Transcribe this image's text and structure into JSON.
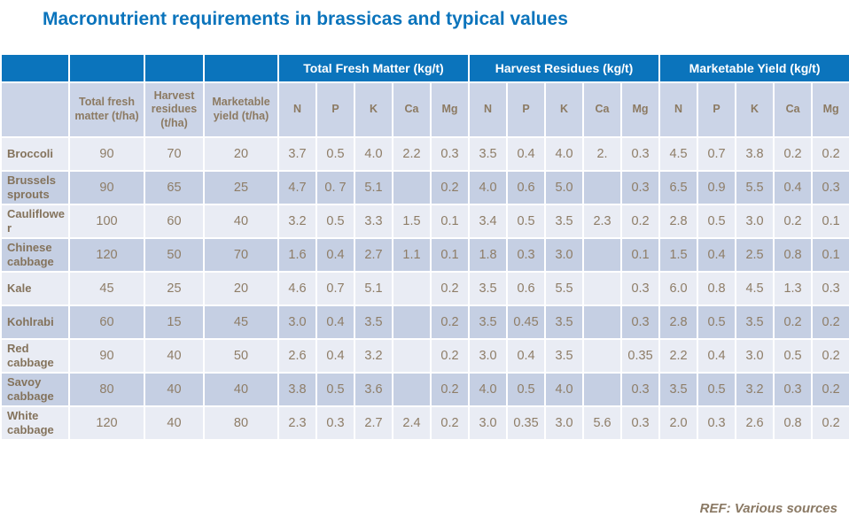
{
  "slide": {
    "title": "Macronutrient requirements in brassicas and typical values",
    "footer": "REF: Various sources"
  },
  "colors": {
    "title_blue": "#0B74BC",
    "group_header_bg": "#0B74BC",
    "group_header_text": "#FFFFFF",
    "subheader_bg": "#CBD4E7",
    "row_light_bg": "#E9ECF4",
    "row_dark_bg": "#C5CFE3",
    "text_brown": "#8C7A62"
  },
  "table": {
    "group_headers": [
      {
        "label": "",
        "span": 1
      },
      {
        "label": "",
        "span": 1
      },
      {
        "label": "",
        "span": 1
      },
      {
        "label": "",
        "span": 1
      },
      {
        "label": "Total Fresh Matter (kg/t)",
        "span": 5
      },
      {
        "label": "Harvest Residues (kg/t)",
        "span": 5
      },
      {
        "label": "Marketable Yield (kg/t)",
        "span": 5
      }
    ],
    "column_headers": [
      "",
      "Total fresh matter (t/ha)",
      "Harvest residues (t/ha)",
      "Marketable yield (t/ha)",
      "N",
      "P",
      "K",
      "Ca",
      "Mg",
      "N",
      "P",
      "K",
      "Ca",
      "Mg",
      "N",
      "P",
      "K",
      "Ca",
      "Mg"
    ],
    "rows": [
      {
        "label": "Broccoli",
        "values": [
          "90",
          "70",
          "20",
          "3.7",
          "0.5",
          "4.0",
          "2.2",
          "0.3",
          "3.5",
          "0.4",
          "4.0",
          "2.",
          "0.3",
          "4.5",
          "0.7",
          "3.8",
          "0.2",
          "0.2"
        ]
      },
      {
        "label": "Brussels sprouts",
        "values": [
          "90",
          "65",
          "25",
          "4.7",
          "0. 7",
          "5.1",
          "",
          "0.2",
          "4.0",
          "0.6",
          "5.0",
          "",
          "0.3",
          "6.5",
          "0.9",
          "5.5",
          "0.4",
          "0.3"
        ]
      },
      {
        "label": "Cauliflower",
        "values": [
          "100",
          "60",
          "40",
          "3.2",
          "0.5",
          "3.3",
          "1.5",
          "0.1",
          "3.4",
          "0.5",
          "3.5",
          "2.3",
          "0.2",
          "2.8",
          "0.5",
          "3.0",
          "0.2",
          "0.1"
        ]
      },
      {
        "label": "Chinese cabbage",
        "values": [
          "120",
          "50",
          "70",
          "1.6",
          "0.4",
          "2.7",
          "1.1",
          "0.1",
          "1.8",
          "0.3",
          "3.0",
          "",
          "0.1",
          "1.5",
          "0.4",
          "2.5",
          "0.8",
          "0.1"
        ]
      },
      {
        "label": "Kale",
        "values": [
          "45",
          "25",
          "20",
          "4.6",
          "0.7",
          "5.1",
          "",
          "0.2",
          "3.5",
          "0.6",
          "5.5",
          "",
          "0.3",
          "6.0",
          "0.8",
          "4.5",
          "1.3",
          "0.3"
        ]
      },
      {
        "label": "Kohlrabi",
        "values": [
          "60",
          "15",
          "45",
          "3.0",
          "0.4",
          "3.5",
          "",
          "0.2",
          "3.5",
          "0.45",
          "3.5",
          "",
          "0.3",
          "2.8",
          "0.5",
          "3.5",
          "0.2",
          "0.2"
        ]
      },
      {
        "label": "Red cabbage",
        "values": [
          "90",
          "40",
          "50",
          "2.6",
          "0.4",
          "3.2",
          "",
          "0.2",
          "3.0",
          "0.4",
          "3.5",
          "",
          "0.35",
          "2.2",
          "0.4",
          "3.0",
          "0.5",
          "0.2"
        ]
      },
      {
        "label": "Savoy cabbage",
        "values": [
          "80",
          "40",
          "40",
          "3.8",
          "0.5",
          "3.6",
          "",
          "0.2",
          "4.0",
          "0.5",
          "4.0",
          "",
          "0.3",
          "3.5",
          "0.5",
          "3.2",
          "0.3",
          "0.2"
        ]
      },
      {
        "label": "White cabbage",
        "values": [
          "120",
          "40",
          "80",
          "2.3",
          "0.3",
          "2.7",
          "2.4",
          "0.2",
          "3.0",
          "0.35",
          "3.0",
          "5.6",
          "0.3",
          "2.0",
          "0.3",
          "2.6",
          "0.8",
          "0.2"
        ]
      }
    ]
  }
}
